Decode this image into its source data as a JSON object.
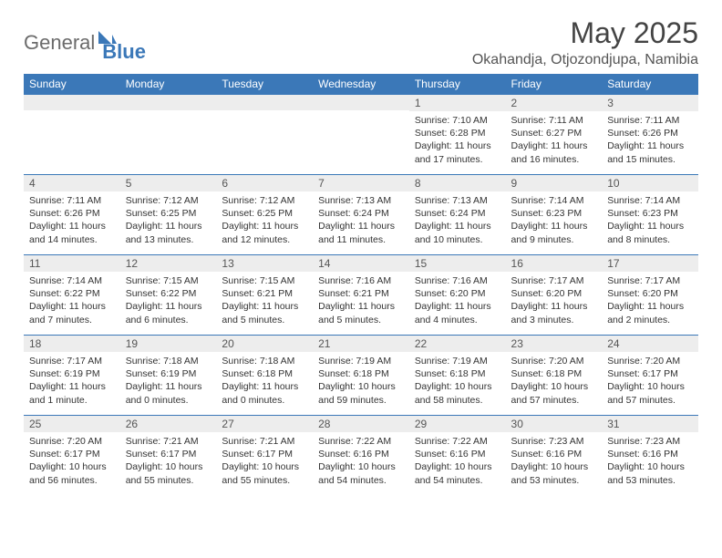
{
  "branding": {
    "logo_word1": "General",
    "logo_word2": "Blue",
    "logo_color_gray": "#6b6b6b",
    "logo_color_blue": "#3b78b8"
  },
  "title": {
    "month": "May 2025",
    "location": "Okahandja, Otjozondjupa, Namibia"
  },
  "colors": {
    "header_bg": "#3b78b8",
    "header_text": "#ffffff",
    "daynum_bg": "#ededed",
    "row_border": "#3b78b8",
    "body_text": "#333333",
    "page_bg": "#ffffff"
  },
  "weekdays": [
    "Sunday",
    "Monday",
    "Tuesday",
    "Wednesday",
    "Thursday",
    "Friday",
    "Saturday"
  ],
  "weeks": [
    [
      null,
      null,
      null,
      null,
      {
        "n": "1",
        "sunrise": "Sunrise: 7:10 AM",
        "sunset": "Sunset: 6:28 PM",
        "daylight": "Daylight: 11 hours and 17 minutes."
      },
      {
        "n": "2",
        "sunrise": "Sunrise: 7:11 AM",
        "sunset": "Sunset: 6:27 PM",
        "daylight": "Daylight: 11 hours and 16 minutes."
      },
      {
        "n": "3",
        "sunrise": "Sunrise: 7:11 AM",
        "sunset": "Sunset: 6:26 PM",
        "daylight": "Daylight: 11 hours and 15 minutes."
      }
    ],
    [
      {
        "n": "4",
        "sunrise": "Sunrise: 7:11 AM",
        "sunset": "Sunset: 6:26 PM",
        "daylight": "Daylight: 11 hours and 14 minutes."
      },
      {
        "n": "5",
        "sunrise": "Sunrise: 7:12 AM",
        "sunset": "Sunset: 6:25 PM",
        "daylight": "Daylight: 11 hours and 13 minutes."
      },
      {
        "n": "6",
        "sunrise": "Sunrise: 7:12 AM",
        "sunset": "Sunset: 6:25 PM",
        "daylight": "Daylight: 11 hours and 12 minutes."
      },
      {
        "n": "7",
        "sunrise": "Sunrise: 7:13 AM",
        "sunset": "Sunset: 6:24 PM",
        "daylight": "Daylight: 11 hours and 11 minutes."
      },
      {
        "n": "8",
        "sunrise": "Sunrise: 7:13 AM",
        "sunset": "Sunset: 6:24 PM",
        "daylight": "Daylight: 11 hours and 10 minutes."
      },
      {
        "n": "9",
        "sunrise": "Sunrise: 7:14 AM",
        "sunset": "Sunset: 6:23 PM",
        "daylight": "Daylight: 11 hours and 9 minutes."
      },
      {
        "n": "10",
        "sunrise": "Sunrise: 7:14 AM",
        "sunset": "Sunset: 6:23 PM",
        "daylight": "Daylight: 11 hours and 8 minutes."
      }
    ],
    [
      {
        "n": "11",
        "sunrise": "Sunrise: 7:14 AM",
        "sunset": "Sunset: 6:22 PM",
        "daylight": "Daylight: 11 hours and 7 minutes."
      },
      {
        "n": "12",
        "sunrise": "Sunrise: 7:15 AM",
        "sunset": "Sunset: 6:22 PM",
        "daylight": "Daylight: 11 hours and 6 minutes."
      },
      {
        "n": "13",
        "sunrise": "Sunrise: 7:15 AM",
        "sunset": "Sunset: 6:21 PM",
        "daylight": "Daylight: 11 hours and 5 minutes."
      },
      {
        "n": "14",
        "sunrise": "Sunrise: 7:16 AM",
        "sunset": "Sunset: 6:21 PM",
        "daylight": "Daylight: 11 hours and 5 minutes."
      },
      {
        "n": "15",
        "sunrise": "Sunrise: 7:16 AM",
        "sunset": "Sunset: 6:20 PM",
        "daylight": "Daylight: 11 hours and 4 minutes."
      },
      {
        "n": "16",
        "sunrise": "Sunrise: 7:17 AM",
        "sunset": "Sunset: 6:20 PM",
        "daylight": "Daylight: 11 hours and 3 minutes."
      },
      {
        "n": "17",
        "sunrise": "Sunrise: 7:17 AM",
        "sunset": "Sunset: 6:20 PM",
        "daylight": "Daylight: 11 hours and 2 minutes."
      }
    ],
    [
      {
        "n": "18",
        "sunrise": "Sunrise: 7:17 AM",
        "sunset": "Sunset: 6:19 PM",
        "daylight": "Daylight: 11 hours and 1 minute."
      },
      {
        "n": "19",
        "sunrise": "Sunrise: 7:18 AM",
        "sunset": "Sunset: 6:19 PM",
        "daylight": "Daylight: 11 hours and 0 minutes."
      },
      {
        "n": "20",
        "sunrise": "Sunrise: 7:18 AM",
        "sunset": "Sunset: 6:18 PM",
        "daylight": "Daylight: 11 hours and 0 minutes."
      },
      {
        "n": "21",
        "sunrise": "Sunrise: 7:19 AM",
        "sunset": "Sunset: 6:18 PM",
        "daylight": "Daylight: 10 hours and 59 minutes."
      },
      {
        "n": "22",
        "sunrise": "Sunrise: 7:19 AM",
        "sunset": "Sunset: 6:18 PM",
        "daylight": "Daylight: 10 hours and 58 minutes."
      },
      {
        "n": "23",
        "sunrise": "Sunrise: 7:20 AM",
        "sunset": "Sunset: 6:18 PM",
        "daylight": "Daylight: 10 hours and 57 minutes."
      },
      {
        "n": "24",
        "sunrise": "Sunrise: 7:20 AM",
        "sunset": "Sunset: 6:17 PM",
        "daylight": "Daylight: 10 hours and 57 minutes."
      }
    ],
    [
      {
        "n": "25",
        "sunrise": "Sunrise: 7:20 AM",
        "sunset": "Sunset: 6:17 PM",
        "daylight": "Daylight: 10 hours and 56 minutes."
      },
      {
        "n": "26",
        "sunrise": "Sunrise: 7:21 AM",
        "sunset": "Sunset: 6:17 PM",
        "daylight": "Daylight: 10 hours and 55 minutes."
      },
      {
        "n": "27",
        "sunrise": "Sunrise: 7:21 AM",
        "sunset": "Sunset: 6:17 PM",
        "daylight": "Daylight: 10 hours and 55 minutes."
      },
      {
        "n": "28",
        "sunrise": "Sunrise: 7:22 AM",
        "sunset": "Sunset: 6:16 PM",
        "daylight": "Daylight: 10 hours and 54 minutes."
      },
      {
        "n": "29",
        "sunrise": "Sunrise: 7:22 AM",
        "sunset": "Sunset: 6:16 PM",
        "daylight": "Daylight: 10 hours and 54 minutes."
      },
      {
        "n": "30",
        "sunrise": "Sunrise: 7:23 AM",
        "sunset": "Sunset: 6:16 PM",
        "daylight": "Daylight: 10 hours and 53 minutes."
      },
      {
        "n": "31",
        "sunrise": "Sunrise: 7:23 AM",
        "sunset": "Sunset: 6:16 PM",
        "daylight": "Daylight: 10 hours and 53 minutes."
      }
    ]
  ]
}
